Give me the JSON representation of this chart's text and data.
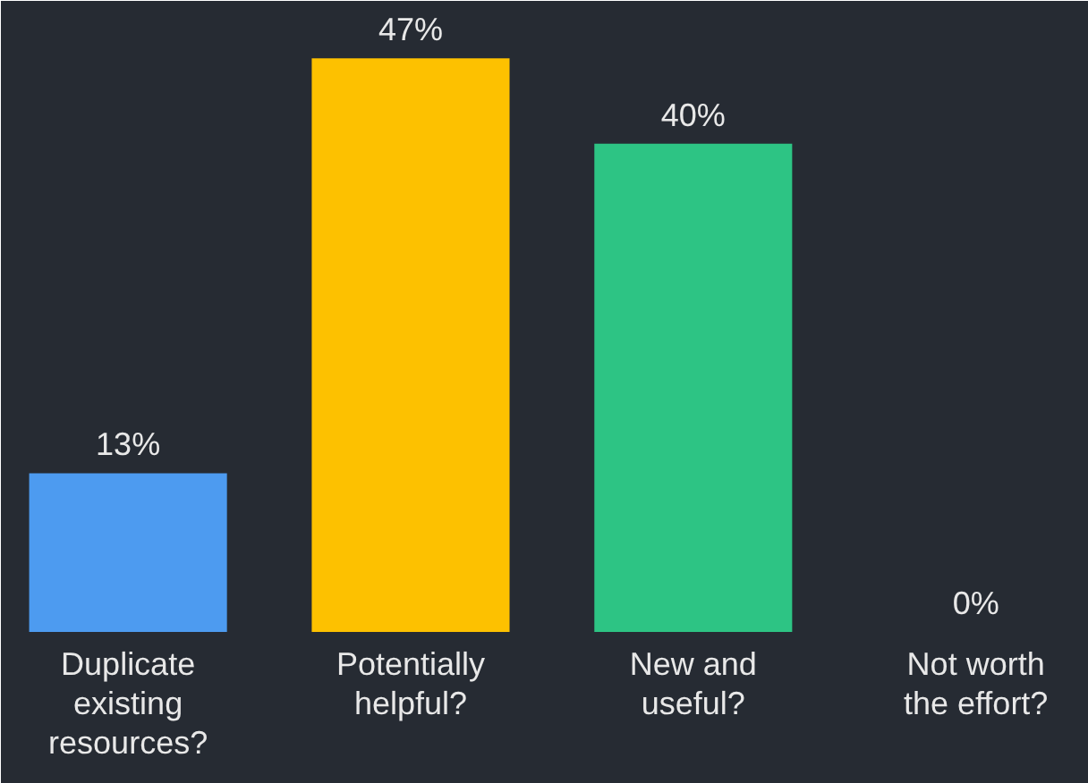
{
  "chart_data": {
    "type": "bar",
    "categories": [
      "Duplicate existing resources?",
      "Potentially helpful?",
      "New and useful?",
      "Not worth the effort?"
    ],
    "values": [
      13,
      47,
      40,
      0
    ],
    "colors": [
      "#4d9bf0",
      "#fdc100",
      "#2dc484",
      "#2dc484"
    ],
    "value_labels": [
      "13%",
      "47%",
      "40%",
      "0%"
    ]
  }
}
